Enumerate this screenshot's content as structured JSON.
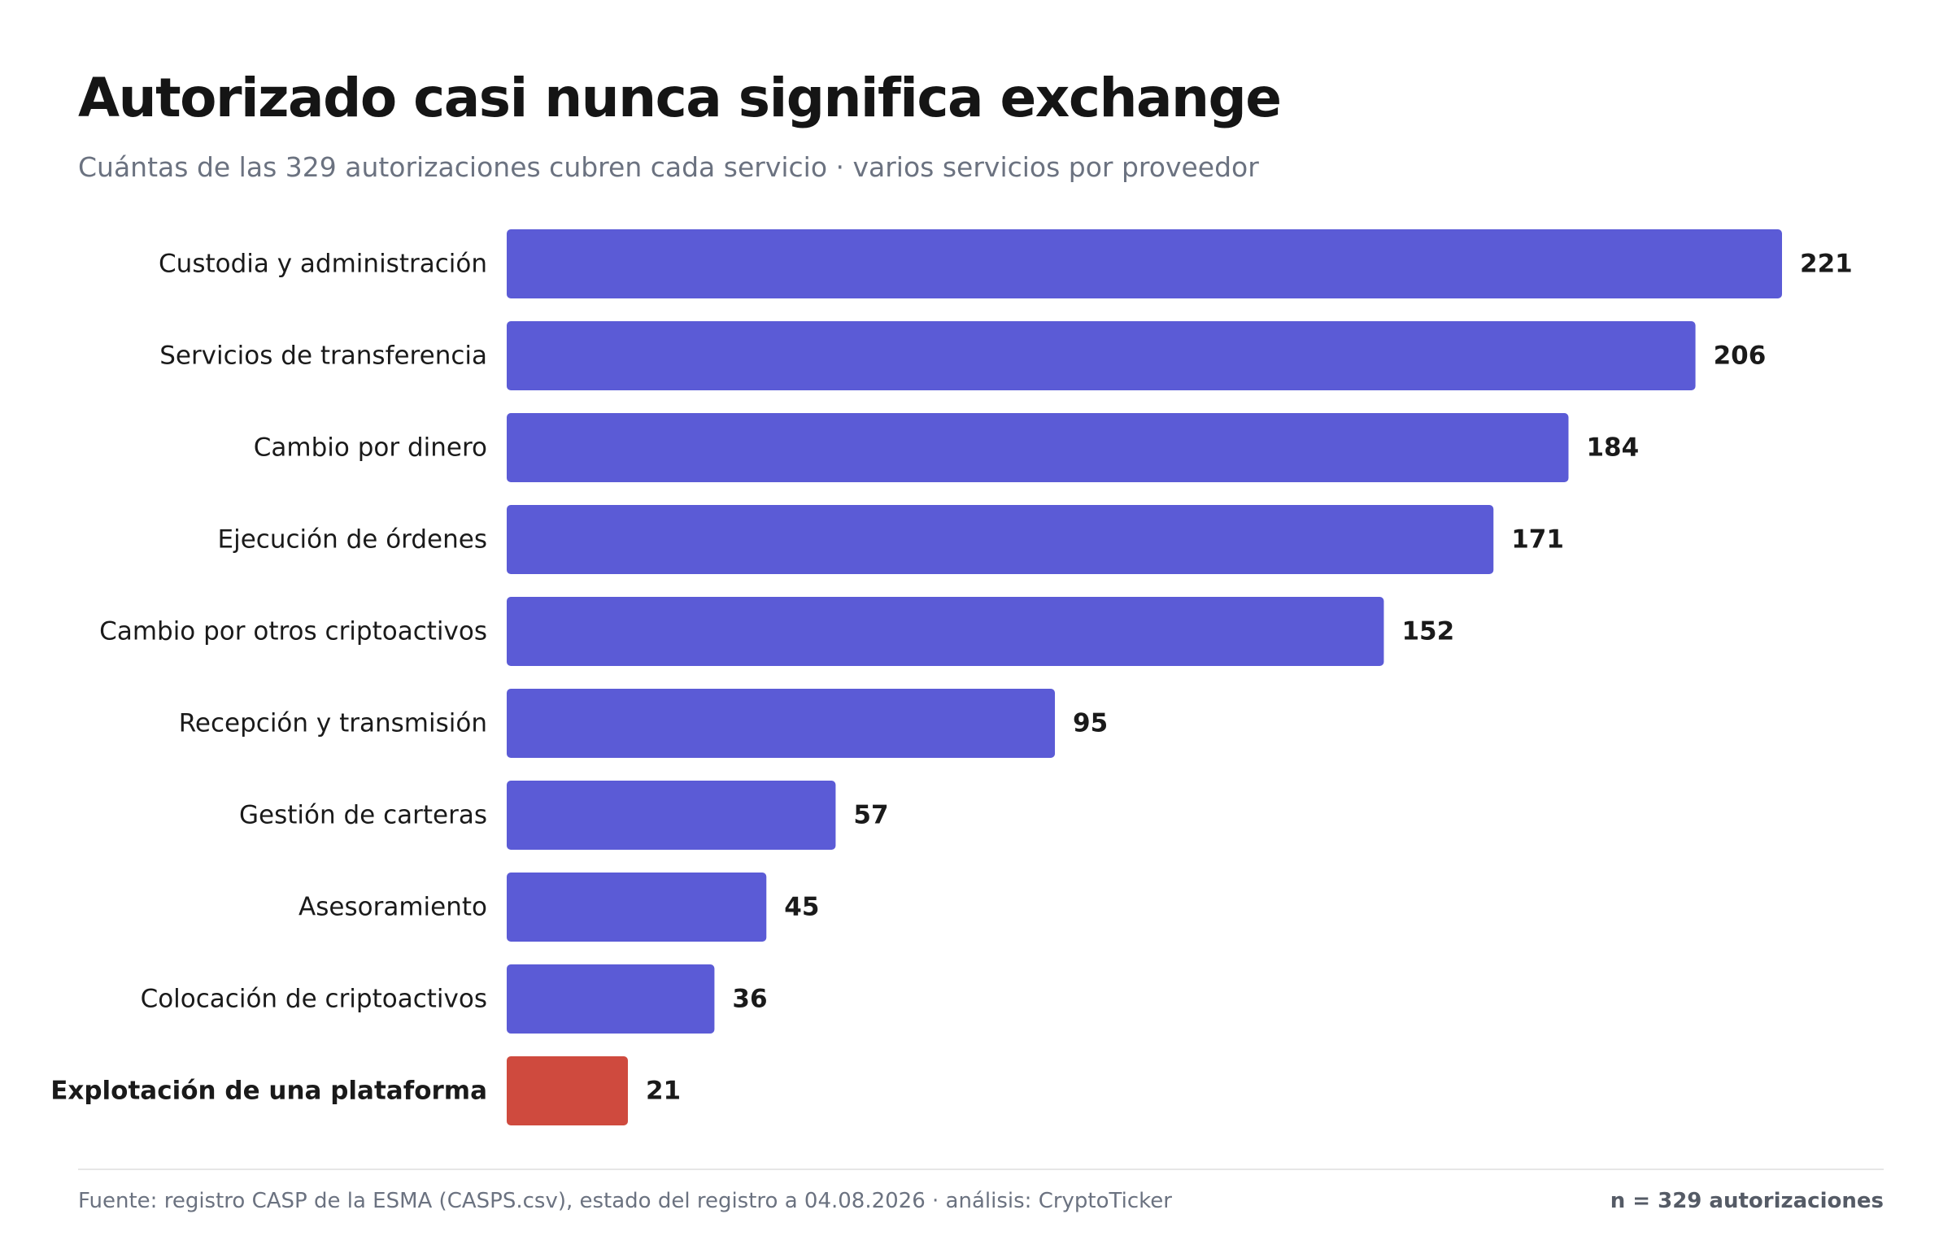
{
  "header": {
    "title": "Autorizado casi nunca significa exchange",
    "subtitle": "Cuántas de las 329 autorizaciones cubren cada servicio · varios servicios por proveedor"
  },
  "footer": {
    "source": "Fuente: registro CASP de la ESMA (CASPS.csv), estado del registro a 04.08.2026 · análisis: CryptoTicker",
    "n_note": "n = 329 autorizaciones"
  },
  "colors": {
    "bar": "#5b5bd6",
    "highlight": "#cf4a3e"
  },
  "chart_data": {
    "type": "bar",
    "orientation": "horizontal",
    "title": "Autorizado casi nunca significa exchange",
    "subtitle": "Cuántas de las 329 autorizaciones cubren cada servicio · varios servicios por proveedor",
    "categories": [
      "Custodia y administración",
      "Servicios de transferencia",
      "Cambio por dinero",
      "Ejecución de órdenes",
      "Cambio por otros criptoactivos",
      "Recepción y transmisión",
      "Gestión de carteras",
      "Asesoramiento",
      "Colocación de criptoactivos",
      "Explotación de una plataforma"
    ],
    "values": [
      221,
      206,
      184,
      171,
      152,
      95,
      57,
      45,
      36,
      21
    ],
    "highlighted_category": "Explotación de una plataforma",
    "xlim": [
      0,
      221
    ],
    "grid": false,
    "data_labels": true
  }
}
